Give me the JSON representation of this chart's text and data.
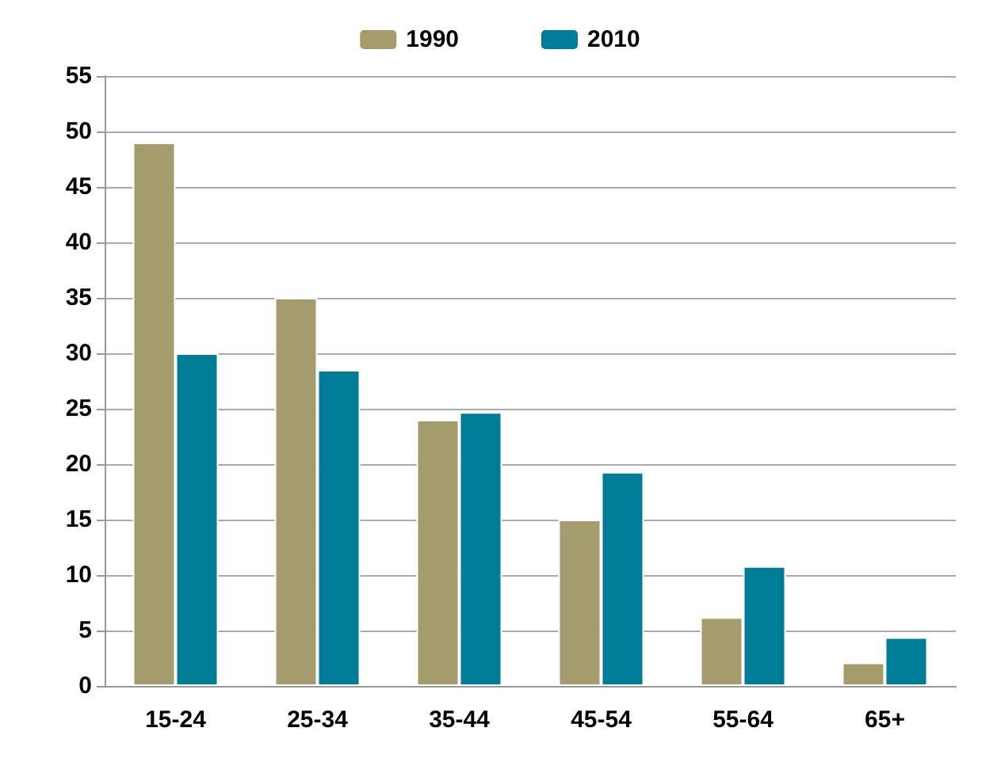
{
  "chart_data": {
    "type": "bar",
    "categories": [
      "15-24",
      "25-34",
      "35-44",
      "45-54",
      "55-64",
      "65+"
    ],
    "series": [
      {
        "name": "1990",
        "color": "#a59c6d",
        "values": [
          49,
          35,
          24,
          15,
          6.2,
          2.1
        ]
      },
      {
        "name": "2010",
        "color": "#007b98",
        "values": [
          30,
          28.5,
          24.7,
          19.3,
          10.8,
          4.4
        ]
      }
    ],
    "ylim": [
      0,
      55
    ],
    "yticks": [
      0,
      5,
      10,
      15,
      20,
      25,
      30,
      35,
      40,
      45,
      50,
      55
    ],
    "grid": "y",
    "legend": "top"
  }
}
